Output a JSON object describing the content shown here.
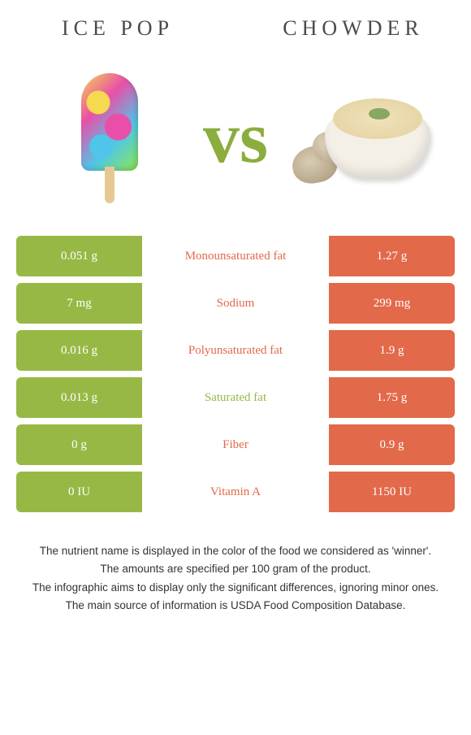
{
  "colors": {
    "left": "#98b846",
    "right": "#e2694a",
    "vs": "#8aad3e"
  },
  "header": {
    "left_title": "ICE POP",
    "right_title": "CHOWDER",
    "vs_text": "vs"
  },
  "rows": [
    {
      "left": "0.051 g",
      "label": "Monounsaturated fat",
      "right": "1.27 g",
      "winner": "right"
    },
    {
      "left": "7 mg",
      "label": "Sodium",
      "right": "299 mg",
      "winner": "right"
    },
    {
      "left": "0.016 g",
      "label": "Polyunsaturated fat",
      "right": "1.9 g",
      "winner": "right"
    },
    {
      "left": "0.013 g",
      "label": "Saturated fat",
      "right": "1.75 g",
      "winner": "left"
    },
    {
      "left": "0 g",
      "label": "Fiber",
      "right": "0.9 g",
      "winner": "right"
    },
    {
      "left": "0 IU",
      "label": "Vitamin A",
      "right": "1150 IU",
      "winner": "right"
    }
  ],
  "footer": {
    "l1": "The nutrient name is displayed in the color of the food we considered as 'winner'.",
    "l2": "The amounts are specified per 100 gram of the product.",
    "l3": "The infographic aims to display only the significant differences, ignoring minor ones.",
    "l4": "The main source of information is USDA Food Composition Database."
  }
}
